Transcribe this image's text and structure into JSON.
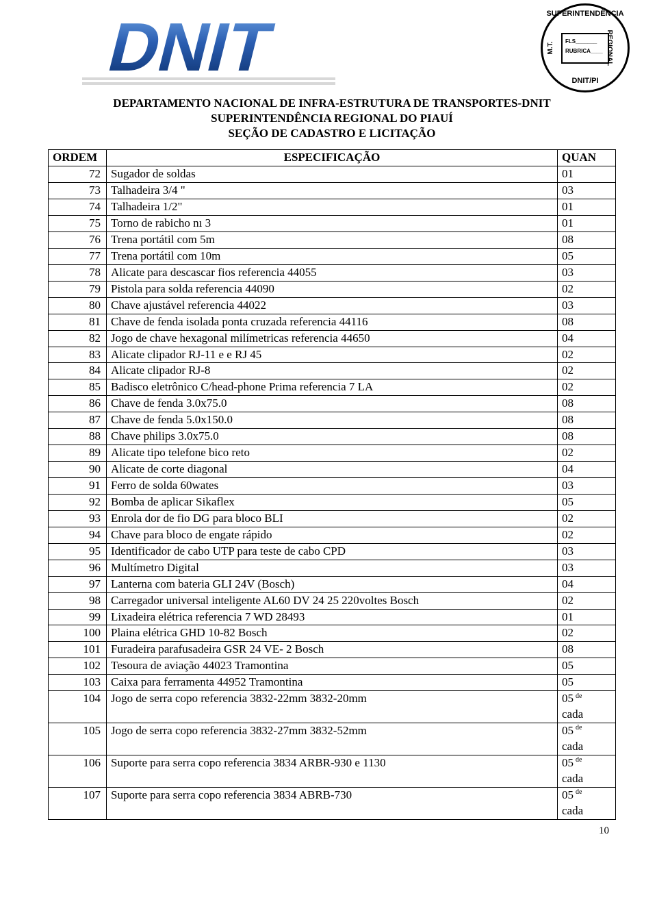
{
  "stamp": {
    "top": "SUPERINTENDÊNCIA",
    "left": "M.T.",
    "right": "REGIONAL",
    "bottom": "DNIT/PI",
    "inner1": "FLS_______",
    "inner2": "RUBRICA____"
  },
  "header": {
    "line1": "DEPARTAMENTO NACIONAL DE INFRA-ESTRUTURA DE TRANSPORTES-DNIT",
    "line2": "SUPERINTENDÊNCIA REGIONAL DO PIAUÍ",
    "line3": "SEÇÃO DE CADASTRO E LICITAÇÃO"
  },
  "table": {
    "columns": {
      "ordem": "ORDEM",
      "espec": "ESPECIFICAÇÃO",
      "quan": "QUAN"
    },
    "rows": [
      {
        "o": "72",
        "e": "Sugador de soldas",
        "q": "01"
      },
      {
        "o": "73",
        "e": "Talhadeira 3/4 \"",
        "q": "03"
      },
      {
        "o": "74",
        "e": "Talhadeira 1/2\"",
        "q": "01"
      },
      {
        "o": "75",
        "e": "Torno de rabicho nı 3",
        "q": "01"
      },
      {
        "o": "76",
        "e": "Trena portátil com 5m",
        "q": "08"
      },
      {
        "o": "77",
        "e": "Trena portátil com 10m",
        "q": "05"
      },
      {
        "o": "78",
        "e": "Alicate para descascar fios referencia 44055",
        "q": "03"
      },
      {
        "o": "79",
        "e": "Pistola para solda referencia 44090",
        "q": "02"
      },
      {
        "o": "80",
        "e": "Chave ajustável referencia 44022",
        "q": "03"
      },
      {
        "o": "81",
        "e": "Chave de fenda isolada ponta cruzada referencia 44116",
        "q": "08"
      },
      {
        "o": "82",
        "e": "Jogo de chave hexagonal milímetricas  referencia 44650",
        "q": "04"
      },
      {
        "o": "83",
        "e": "Alicate clipador RJ-11 e e RJ 45",
        "q": "02"
      },
      {
        "o": "84",
        "e": "Alicate clipador RJ-8",
        "q": "02"
      },
      {
        "o": "85",
        "e": " Badisco eletrônico C/head-phone Prima referencia 7 LA",
        "q": "02"
      },
      {
        "o": "86",
        "e": "Chave de fenda 3.0x75.0",
        "q": "08"
      },
      {
        "o": "87",
        "e": "Chave de fenda 5.0x150.0",
        "q": "08"
      },
      {
        "o": "88",
        "e": "Chave philips 3.0x75.0",
        "q": "08"
      },
      {
        "o": "89",
        "e": "Alicate tipo telefone bico reto",
        "q": "02"
      },
      {
        "o": "90",
        "e": "Alicate de corte diagonal",
        "q": "04"
      },
      {
        "o": "91",
        "e": "Ferro de solda 60wates",
        "q": "03"
      },
      {
        "o": "92",
        "e": "Bomba de aplicar Sikaflex",
        "q": "05"
      },
      {
        "o": "93",
        "e": "Enrola dor de fio DG para bloco BLI",
        "q": "02"
      },
      {
        "o": "94",
        "e": "Chave para bloco de engate rápido",
        "q": "02"
      },
      {
        "o": "95",
        "e": "Identificador de cabo UTP para teste de cabo CPD",
        "q": "03"
      },
      {
        "o": "96",
        "e": "Multímetro Digital",
        "q": "03"
      },
      {
        "o": "97",
        "e": "Lanterna com bateria GLI 24V (Bosch)",
        "q": "04"
      },
      {
        "o": "98",
        "e": "Carregador universal inteligente AL60 DV 24 25 220voltes Bosch",
        "q": "02"
      },
      {
        "o": "99",
        "e": " Lixadeira elétrica referencia 7 WD 28493",
        "q": "01"
      },
      {
        "o": "100",
        "e": "Plaina elétrica GHD 10-82 Bosch",
        "q": "02"
      },
      {
        "o": "101",
        "e": "Furadeira parafusadeira GSR 24 VE- 2 Bosch",
        "q": "08"
      },
      {
        "o": "102",
        "e": "Tesoura de aviação 44023 Tramontina",
        "q": "05"
      },
      {
        "o": "103",
        "e": "Caixa para ferramenta 44952 Tramontina",
        "q": "05"
      },
      {
        "o": "104",
        "e": "Jogo de serra copo referencia 3832-22mm 3832-20mm",
        "q": "05 cada",
        "de": true
      },
      {
        "o": "105",
        "e": "Jogo de serra copo referencia 3832-27mm 3832-52mm",
        "q": "05 cada",
        "de": true
      },
      {
        "o": "106",
        "e": "Suporte para serra copo referencia 3834 ARBR-930 e 1130",
        "q": "05 cada",
        "de": true
      },
      {
        "o": "107",
        "e": "Suporte para serra copo referencia 3834 ABRB-730",
        "q": "05 cada",
        "de": true
      }
    ]
  },
  "de_label": "de",
  "page_number": "10",
  "logo": {
    "text": "DNIT",
    "color_dark": "#0b2f6b",
    "color_mid": "#2a5db0",
    "color_light": "#5a8fd6",
    "stripe": "#e8e8e8"
  }
}
